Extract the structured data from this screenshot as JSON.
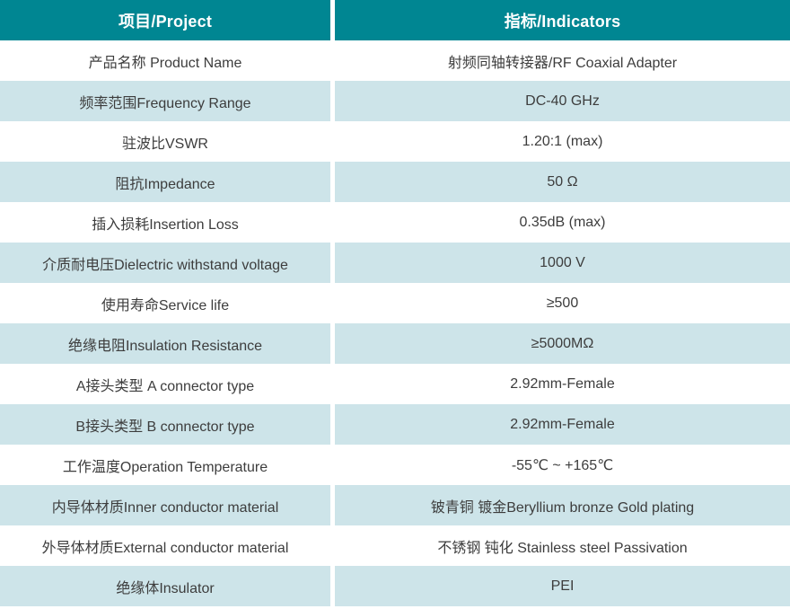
{
  "table": {
    "header": {
      "project": "项目/Project",
      "indicators": "指标/Indicators"
    },
    "rows": [
      {
        "project": "产品名称 Product Name",
        "indicator": "射频同轴转接器/RF Coaxial Adapter",
        "shade": "white"
      },
      {
        "project": "频率范围Frequency Range",
        "indicator": "DC-40 GHz",
        "shade": "blue"
      },
      {
        "project": "驻波比VSWR",
        "indicator": "1.20:1 (max)",
        "shade": "white"
      },
      {
        "project": "阻抗Impedance",
        "indicator": "50 Ω",
        "shade": "blue"
      },
      {
        "project": "插入损耗Insertion Loss",
        "indicator": "0.35dB (max)",
        "shade": "white"
      },
      {
        "project": "介质耐电压Dielectric withstand voltage",
        "indicator": "1000 V",
        "shade": "blue"
      },
      {
        "project": "使用寿命Service life",
        "indicator": "≥500",
        "shade": "white"
      },
      {
        "project": "绝缘电阻Insulation Resistance",
        "indicator": "≥5000MΩ",
        "shade": "blue"
      },
      {
        "project": "A接头类型 A connector type",
        "indicator": "2.92mm-Female",
        "shade": "white"
      },
      {
        "project": "B接头类型 B connector type",
        "indicator": "2.92mm-Female",
        "shade": "blue"
      },
      {
        "project": "工作温度Operation Temperature",
        "indicator": "-55℃ ~ +165℃",
        "shade": "white"
      },
      {
        "project": "内导体材质Inner conductor material",
        "indicator": "铍青铜 镀金Beryllium bronze Gold plating",
        "shade": "blue"
      },
      {
        "project": "外导体材质External conductor material",
        "indicator": "不锈钢 钝化 Stainless steel Passivation",
        "shade": "white"
      },
      {
        "project": "绝缘体Insulator",
        "indicator": "PEI",
        "shade": "blue"
      }
    ],
    "colors": {
      "header_bg": "#008692",
      "header_text": "#ffffff",
      "row_alt_bg": "#cde4e9",
      "row_bg": "#ffffff",
      "body_text": "#3d3d3d"
    }
  }
}
